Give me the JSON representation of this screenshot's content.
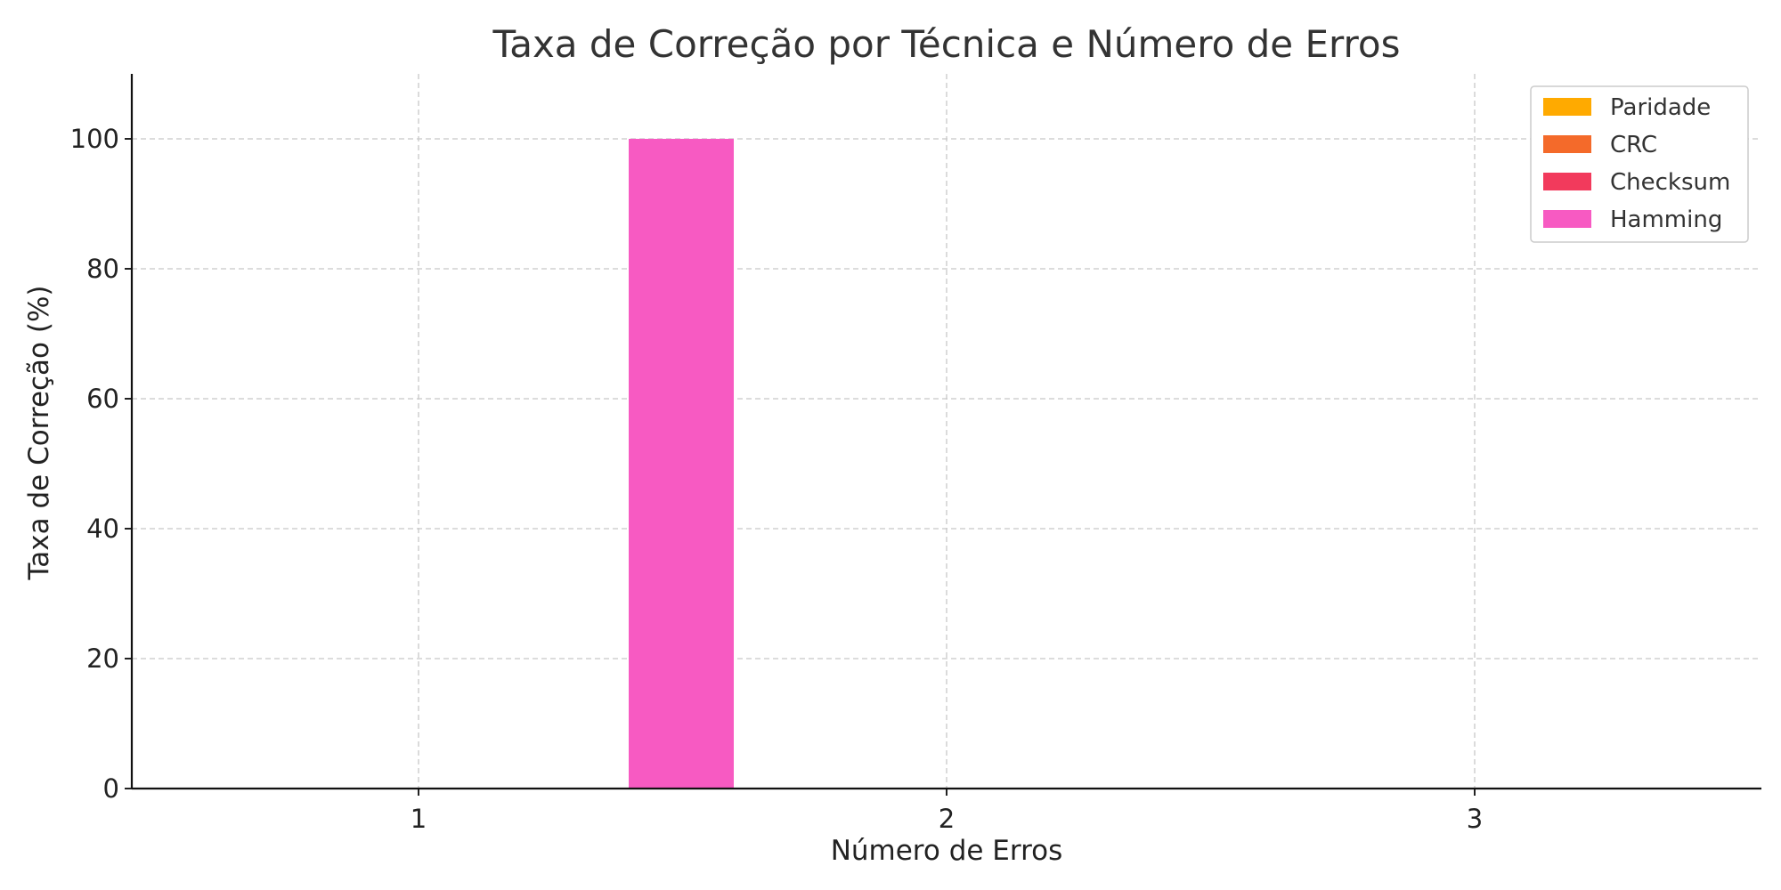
{
  "chart_data": {
    "type": "bar",
    "title": "Taxa de Correção por Técnica e Número de Erros",
    "xlabel": "Número de Erros",
    "ylabel": "Taxa de Correção (%)",
    "categories": [
      "1",
      "2",
      "3"
    ],
    "ylim": [
      0,
      110
    ],
    "yticks": [
      "0",
      "20",
      "40",
      "60",
      "80",
      "100"
    ],
    "grid": true,
    "legend_position": "top-right",
    "series": [
      {
        "name": "Paridade",
        "color": "#FFAA00",
        "values": [
          0,
          0,
          0
        ]
      },
      {
        "name": "CRC",
        "color": "#F46A2A",
        "values": [
          0,
          0,
          0
        ]
      },
      {
        "name": "Checksum",
        "color": "#F23A5C",
        "values": [
          0,
          0,
          0
        ]
      },
      {
        "name": "Hamming",
        "color": "#F75AC2",
        "values": [
          100,
          0,
          0
        ]
      }
    ]
  }
}
